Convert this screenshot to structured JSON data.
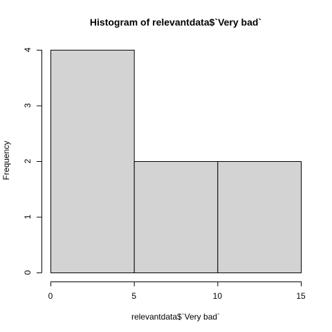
{
  "chart_data": {
    "type": "bar",
    "title": "Histogram of relevantdata$`Very bad`",
    "xlabel": "relevantdata$`Very bad`",
    "ylabel": "Frequency",
    "bins": [
      {
        "from": 0,
        "to": 5,
        "count": 4
      },
      {
        "from": 5,
        "to": 10,
        "count": 2
      },
      {
        "from": 10,
        "to": 15,
        "count": 2
      }
    ],
    "xlim": [
      0,
      15
    ],
    "ylim": [
      0,
      4
    ],
    "x_ticks": [
      "0",
      "5",
      "10",
      "15"
    ],
    "y_ticks": [
      "0",
      "1",
      "2",
      "3",
      "4"
    ],
    "grid": false,
    "legend": "none",
    "colors": {
      "bar_fill": "#d3d3d3",
      "bar_stroke": "#000000",
      "axis": "#000000",
      "background": "#ffffff"
    }
  }
}
